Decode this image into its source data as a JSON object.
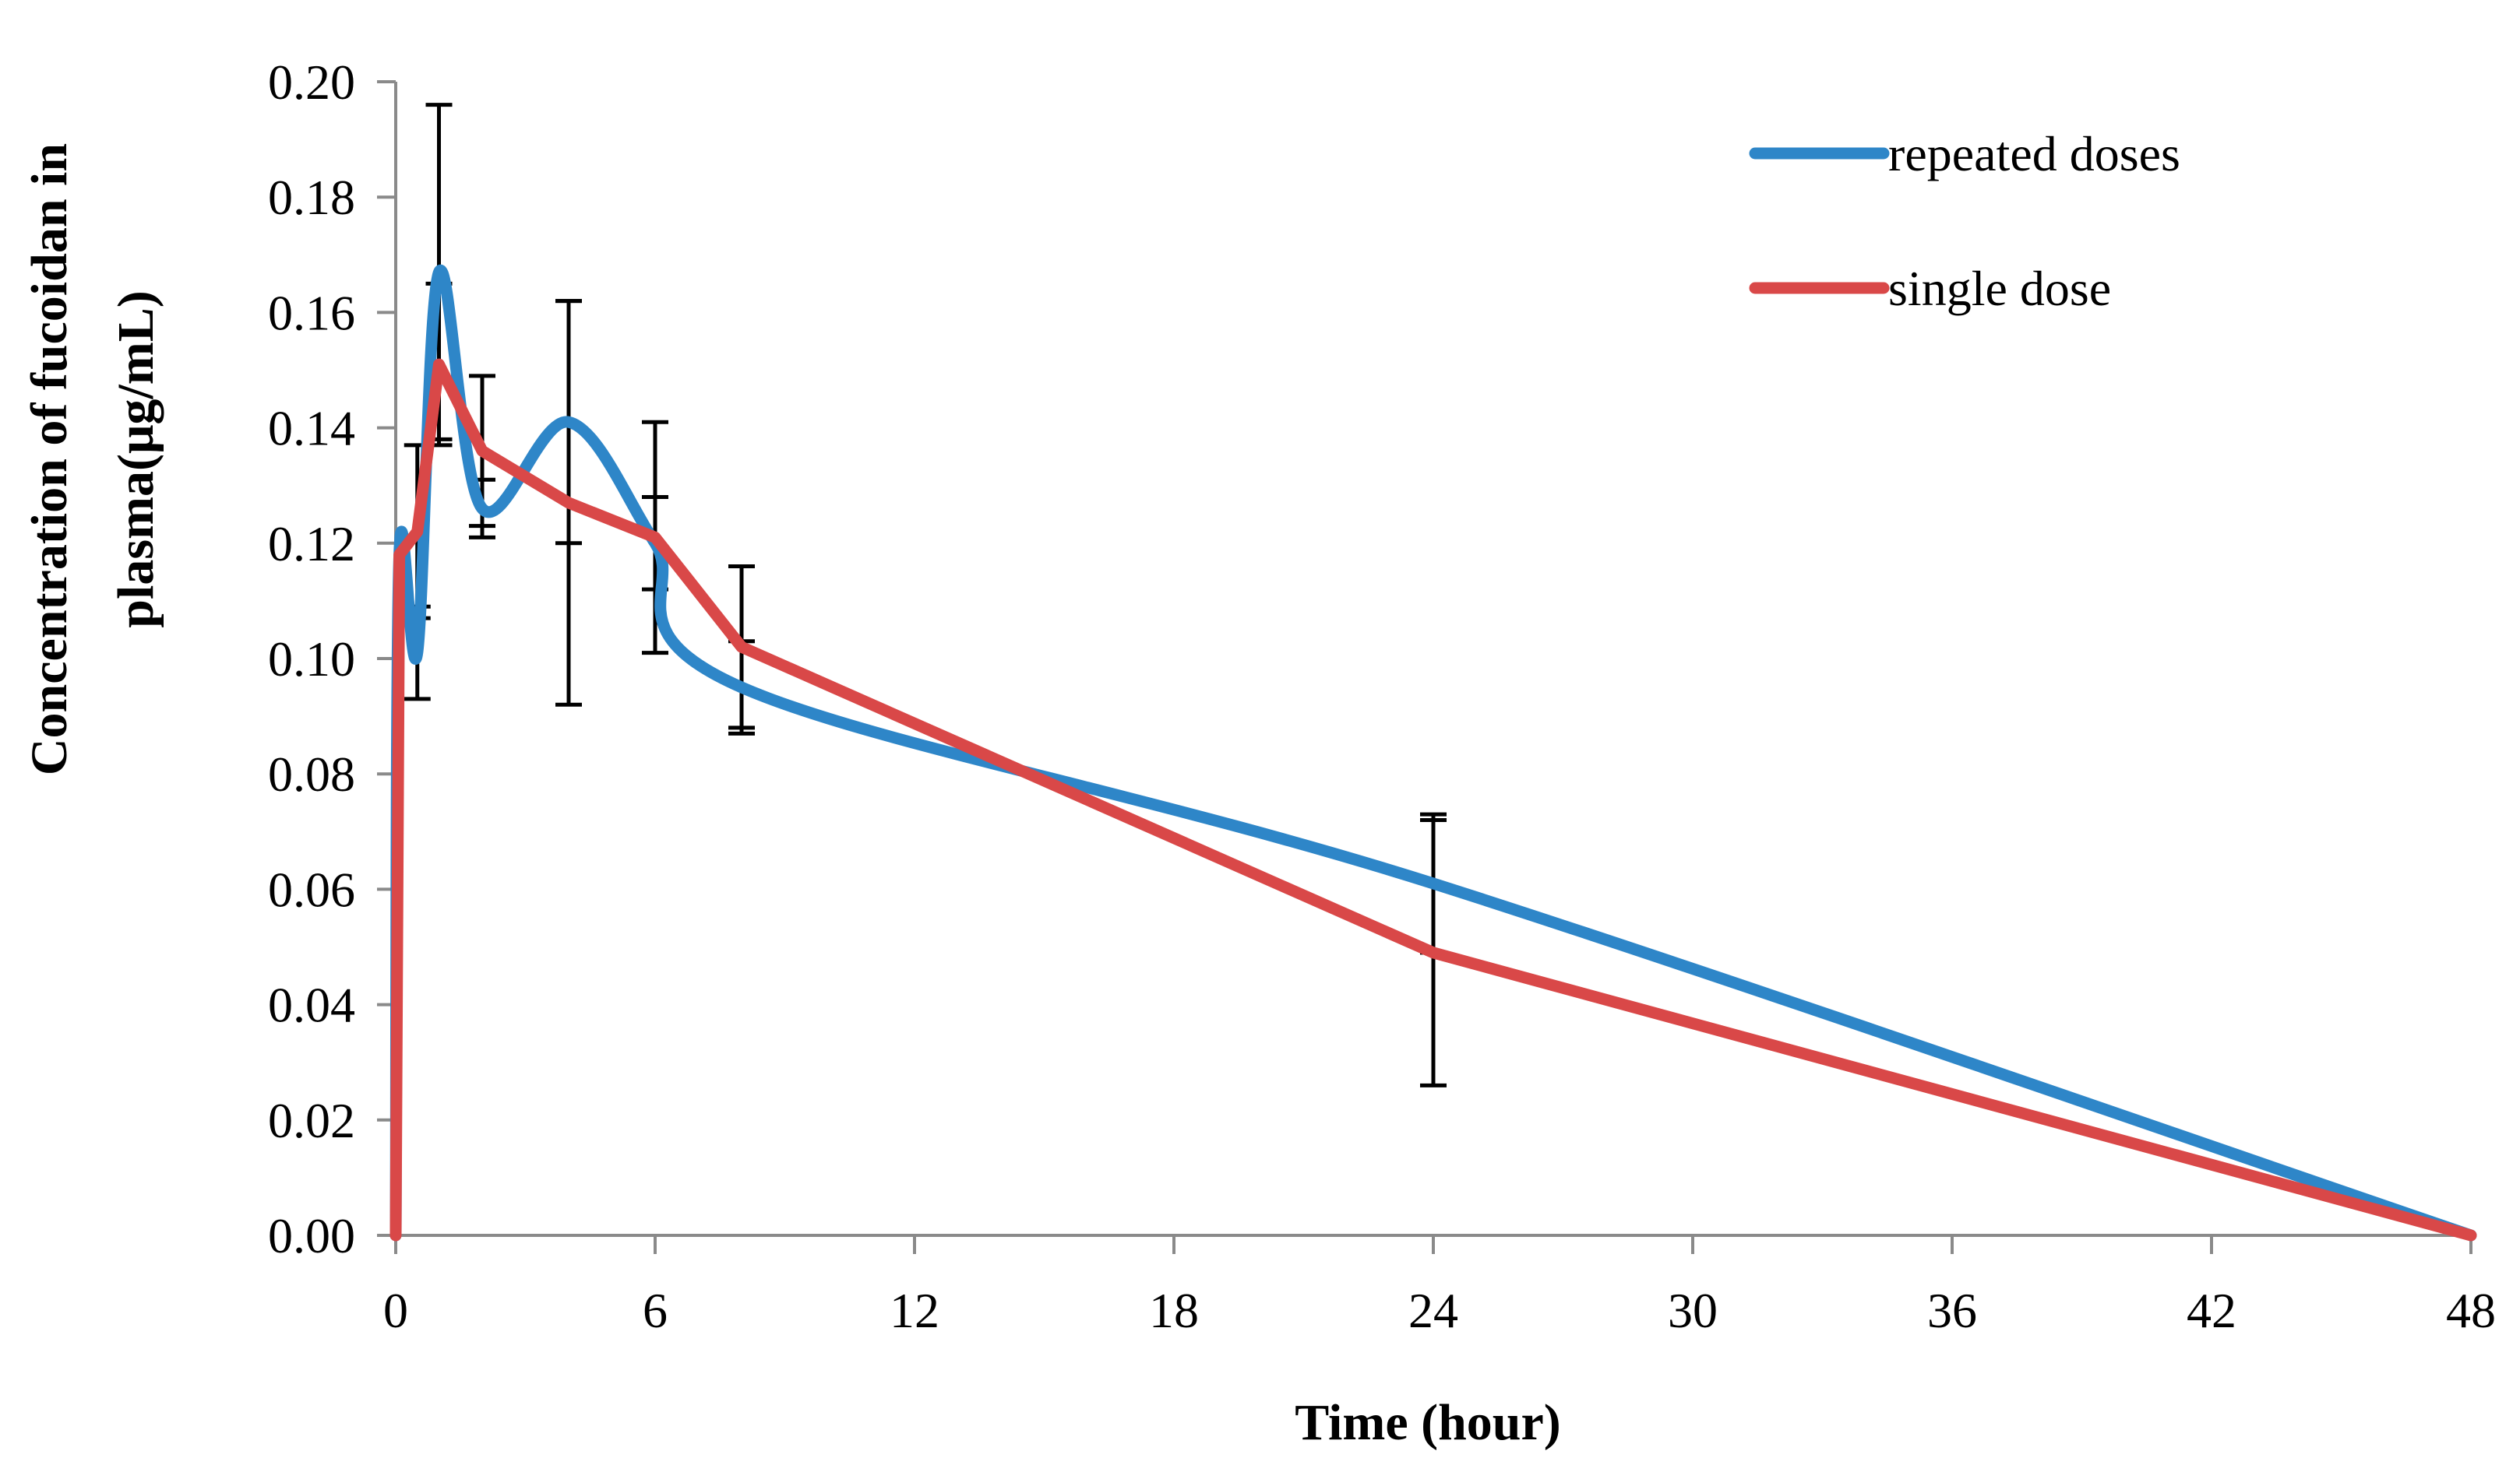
{
  "chart_data": {
    "type": "line",
    "title": "",
    "xlabel": "Time (hour)",
    "ylabel_lines": [
      "Concentration of fucoidan in",
      "plasma(μg/mL)"
    ],
    "xlim": [
      0,
      48
    ],
    "ylim": [
      0,
      0.2
    ],
    "x_ticks": [
      0,
      6,
      12,
      18,
      24,
      30,
      36,
      42,
      48
    ],
    "x_tick_labels": [
      "0",
      "6",
      "12",
      "18",
      "24",
      "30",
      "36",
      "42",
      "48"
    ],
    "y_ticks": [
      0,
      0.02,
      0.04,
      0.06,
      0.08,
      0.1,
      0.12,
      0.14,
      0.16,
      0.18,
      0.2
    ],
    "y_tick_labels": [
      "0.00",
      "0.02",
      "0.04",
      "0.06",
      "0.08",
      "0.10",
      "0.12",
      "0.14",
      "0.16",
      "0.18",
      "0.20"
    ],
    "grid": false,
    "legend_position": "top-right",
    "series": [
      {
        "name": "repeated doses",
        "color": "#2E86C8",
        "smooth": true,
        "x": [
          0,
          0.083,
          0.5,
          1,
          2,
          4,
          6,
          8,
          24,
          48
        ],
        "y": [
          0,
          0.118,
          0.101,
          0.167,
          0.126,
          0.141,
          0.12,
          0.095,
          0.061,
          0
        ],
        "error": [
          0,
          0,
          0.008,
          0.029,
          0.005,
          0.021,
          0.008,
          0.008,
          0.012,
          0
        ]
      },
      {
        "name": "single dose",
        "color": "#D94848",
        "smooth": false,
        "x": [
          0,
          0.083,
          0.5,
          1,
          2,
          4,
          6,
          8,
          24,
          48
        ],
        "y": [
          0,
          0.118,
          0.122,
          0.151,
          0.136,
          0.127,
          0.121,
          0.102,
          0.049,
          0
        ],
        "error": [
          0,
          0,
          0.015,
          0.014,
          0.013,
          0.035,
          0.02,
          0.014,
          0.023,
          0
        ]
      }
    ]
  }
}
